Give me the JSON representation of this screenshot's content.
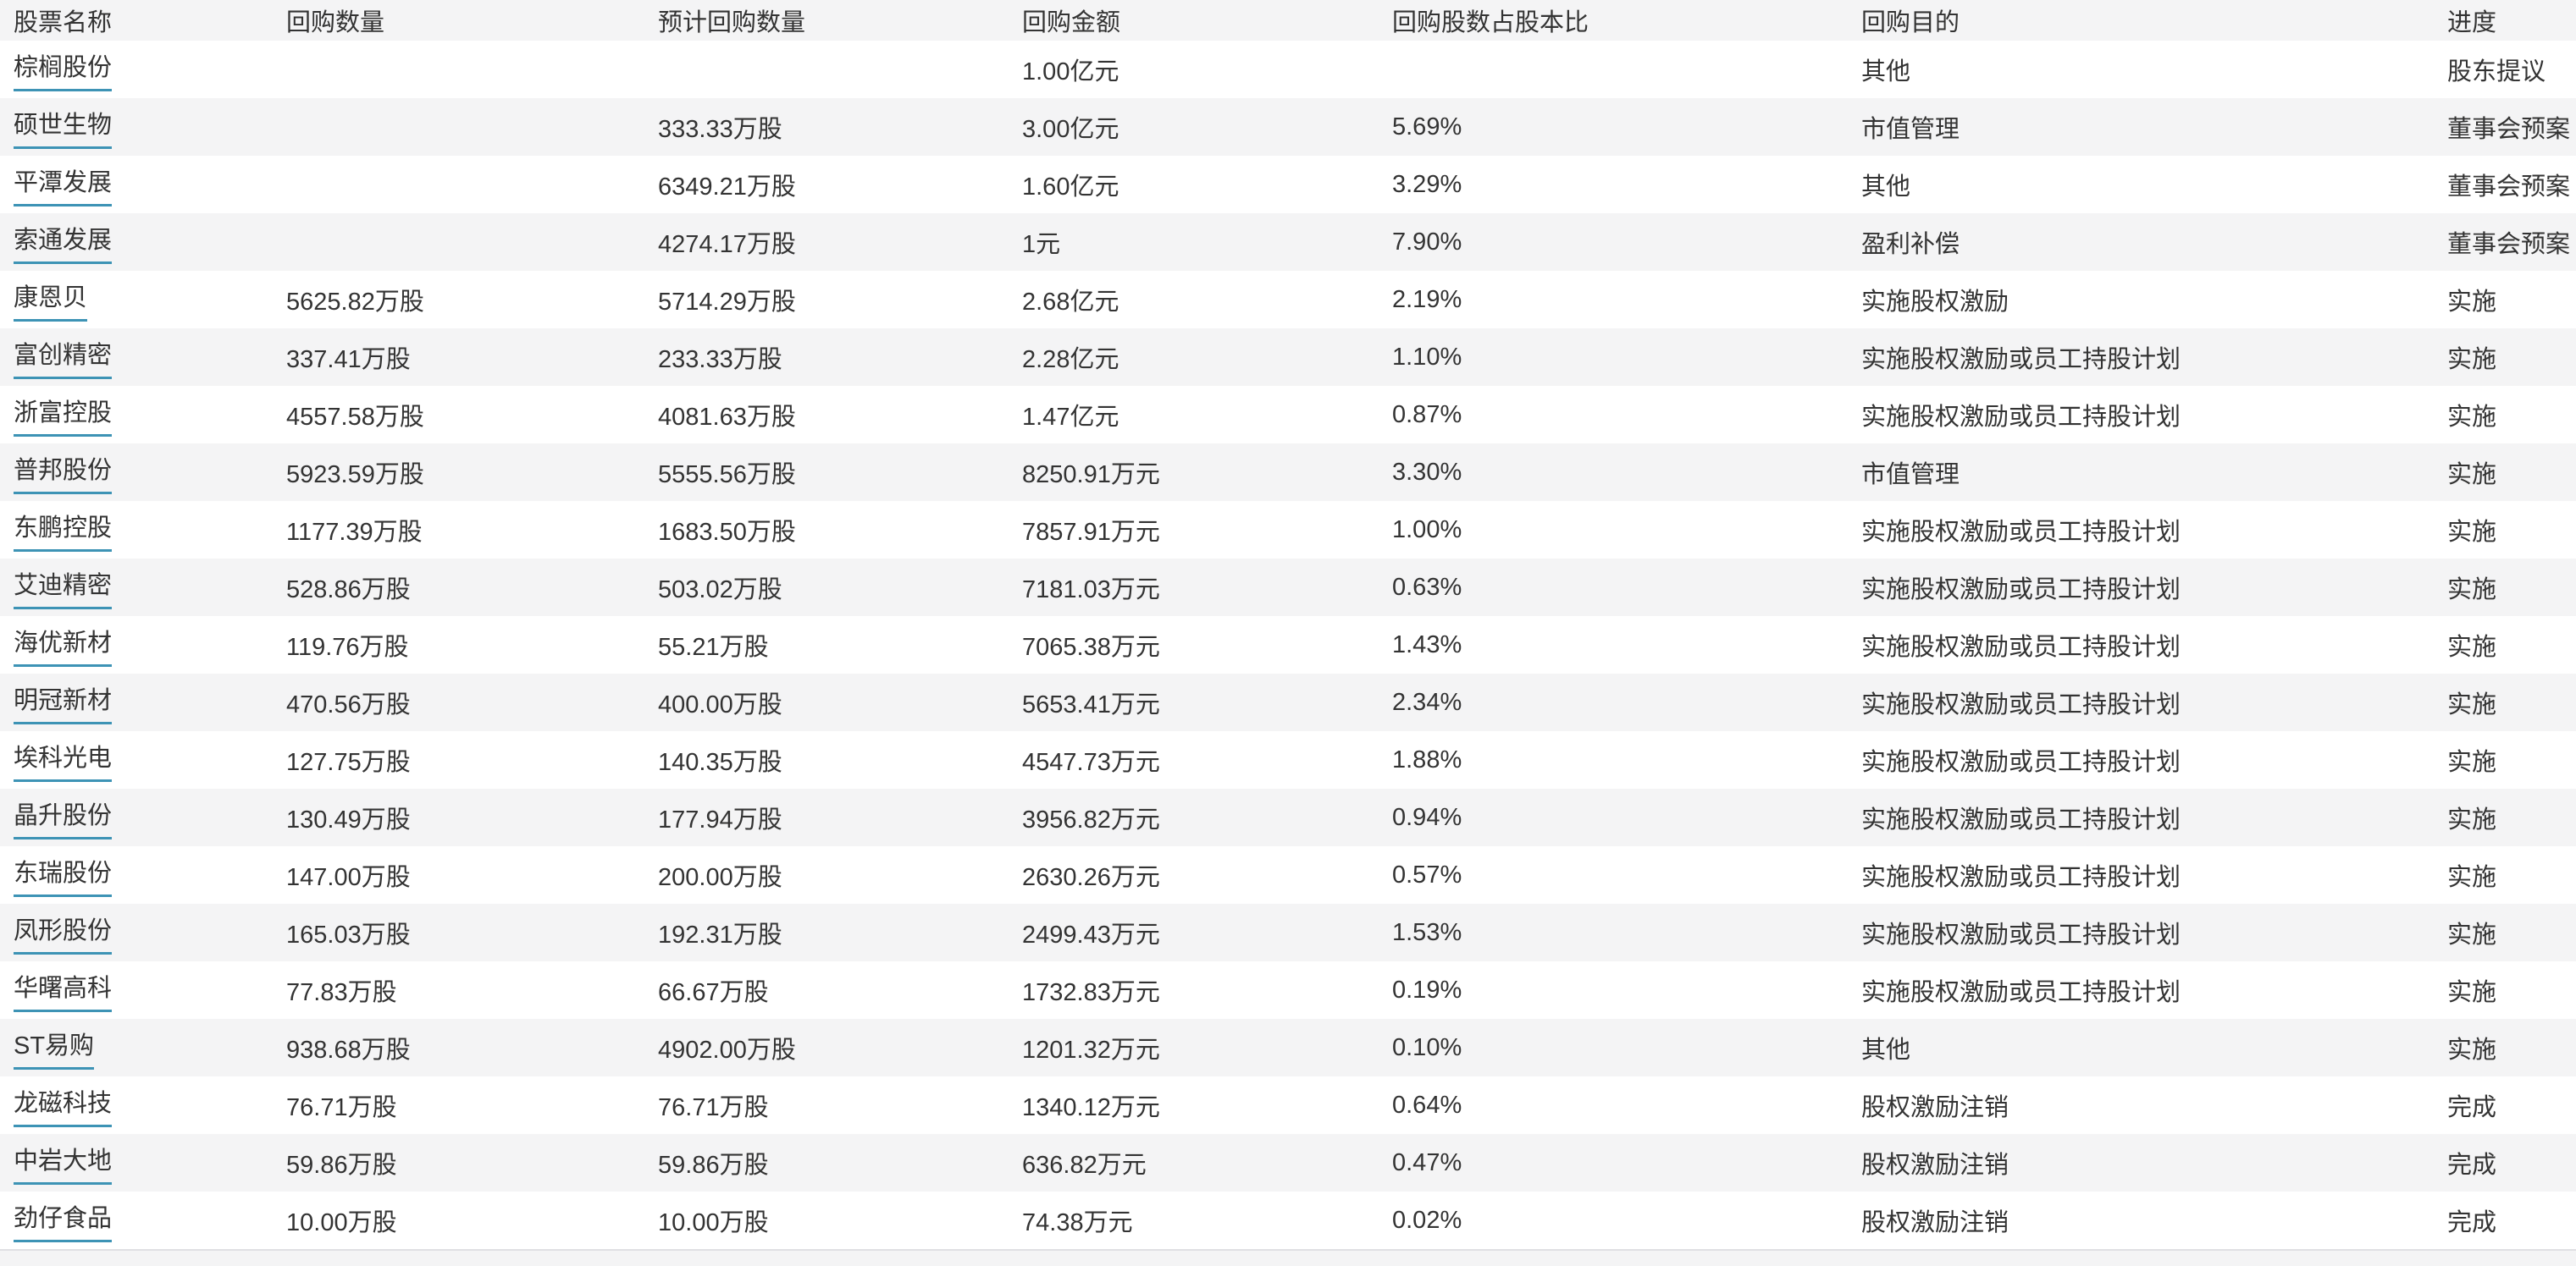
{
  "table": {
    "columns": [
      "股票名称",
      "回购数量",
      "预计回购数量",
      "回购金额",
      "回购股数占股本比",
      "回购目的",
      "进度"
    ],
    "rows": [
      {
        "name": "棕榈股份",
        "qty": "",
        "est_qty": "",
        "amount": "1.00亿元",
        "pct": "",
        "purpose": "其他",
        "progress": "股东提议"
      },
      {
        "name": "硕世生物",
        "qty": "",
        "est_qty": "333.33万股",
        "amount": "3.00亿元",
        "pct": "5.69%",
        "purpose": "市值管理",
        "progress": "董事会预案"
      },
      {
        "name": "平潭发展",
        "qty": "",
        "est_qty": "6349.21万股",
        "amount": "1.60亿元",
        "pct": "3.29%",
        "purpose": "其他",
        "progress": "董事会预案"
      },
      {
        "name": "索通发展",
        "qty": "",
        "est_qty": "4274.17万股",
        "amount": "1元",
        "pct": "7.90%",
        "purpose": "盈利补偿",
        "progress": "董事会预案"
      },
      {
        "name": "康恩贝",
        "qty": "5625.82万股",
        "est_qty": "5714.29万股",
        "amount": "2.68亿元",
        "pct": "2.19%",
        "purpose": "实施股权激励",
        "progress": "实施"
      },
      {
        "name": "富创精密",
        "qty": "337.41万股",
        "est_qty": "233.33万股",
        "amount": "2.28亿元",
        "pct": "1.10%",
        "purpose": "实施股权激励或员工持股计划",
        "progress": "实施"
      },
      {
        "name": "浙富控股",
        "qty": "4557.58万股",
        "est_qty": "4081.63万股",
        "amount": "1.47亿元",
        "pct": "0.87%",
        "purpose": "实施股权激励或员工持股计划",
        "progress": "实施"
      },
      {
        "name": "普邦股份",
        "qty": "5923.59万股",
        "est_qty": "5555.56万股",
        "amount": "8250.91万元",
        "pct": "3.30%",
        "purpose": "市值管理",
        "progress": "实施"
      },
      {
        "name": "东鹏控股",
        "qty": "1177.39万股",
        "est_qty": "1683.50万股",
        "amount": "7857.91万元",
        "pct": "1.00%",
        "purpose": "实施股权激励或员工持股计划",
        "progress": "实施"
      },
      {
        "name": "艾迪精密",
        "qty": "528.86万股",
        "est_qty": "503.02万股",
        "amount": "7181.03万元",
        "pct": "0.63%",
        "purpose": "实施股权激励或员工持股计划",
        "progress": "实施"
      },
      {
        "name": "海优新材",
        "qty": "119.76万股",
        "est_qty": "55.21万股",
        "amount": "7065.38万元",
        "pct": "1.43%",
        "purpose": "实施股权激励或员工持股计划",
        "progress": "实施"
      },
      {
        "name": "明冠新材",
        "qty": "470.56万股",
        "est_qty": "400.00万股",
        "amount": "5653.41万元",
        "pct": "2.34%",
        "purpose": "实施股权激励或员工持股计划",
        "progress": "实施"
      },
      {
        "name": "埃科光电",
        "qty": "127.75万股",
        "est_qty": "140.35万股",
        "amount": "4547.73万元",
        "pct": "1.88%",
        "purpose": "实施股权激励或员工持股计划",
        "progress": "实施"
      },
      {
        "name": "晶升股份",
        "qty": "130.49万股",
        "est_qty": "177.94万股",
        "amount": "3956.82万元",
        "pct": "0.94%",
        "purpose": "实施股权激励或员工持股计划",
        "progress": "实施"
      },
      {
        "name": "东瑞股份",
        "qty": "147.00万股",
        "est_qty": "200.00万股",
        "amount": "2630.26万元",
        "pct": "0.57%",
        "purpose": "实施股权激励或员工持股计划",
        "progress": "实施"
      },
      {
        "name": "凤形股份",
        "qty": "165.03万股",
        "est_qty": "192.31万股",
        "amount": "2499.43万元",
        "pct": "1.53%",
        "purpose": "实施股权激励或员工持股计划",
        "progress": "实施"
      },
      {
        "name": "华曙高科",
        "qty": "77.83万股",
        "est_qty": "66.67万股",
        "amount": "1732.83万元",
        "pct": "0.19%",
        "purpose": "实施股权激励或员工持股计划",
        "progress": "实施"
      },
      {
        "name": "ST易购",
        "qty": "938.68万股",
        "est_qty": "4902.00万股",
        "amount": "1201.32万元",
        "pct": "0.10%",
        "purpose": "其他",
        "progress": "实施"
      },
      {
        "name": "龙磁科技",
        "qty": "76.71万股",
        "est_qty": "76.71万股",
        "amount": "1340.12万元",
        "pct": "0.64%",
        "purpose": "股权激励注销",
        "progress": "完成"
      },
      {
        "name": "中岩大地",
        "qty": "59.86万股",
        "est_qty": "59.86万股",
        "amount": "636.82万元",
        "pct": "0.47%",
        "purpose": "股权激励注销",
        "progress": "完成"
      },
      {
        "name": "劲仔食品",
        "qty": "10.00万股",
        "est_qty": "10.00万股",
        "amount": "74.38万元",
        "pct": "0.02%",
        "purpose": "股权激励注销",
        "progress": "完成"
      }
    ]
  },
  "colors": {
    "link_underline": "#3d93b5",
    "alt_row_bg": "#f4f4f5",
    "text": "#333333",
    "partial_row_border": "#dfdfe3"
  }
}
